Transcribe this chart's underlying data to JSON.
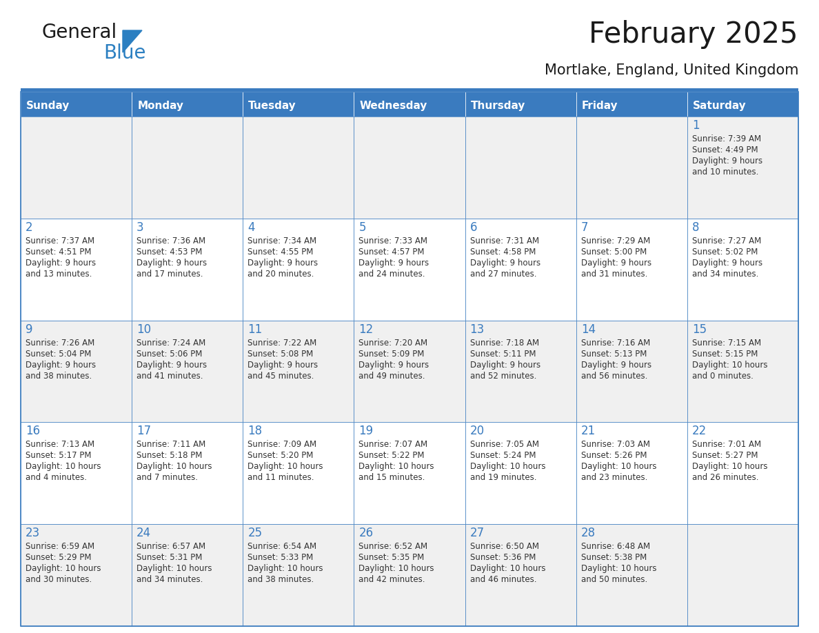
{
  "title": "February 2025",
  "subtitle": "Mortlake, England, United Kingdom",
  "days_of_week": [
    "Sunday",
    "Monday",
    "Tuesday",
    "Wednesday",
    "Thursday",
    "Friday",
    "Saturday"
  ],
  "header_bg": "#3a7bbf",
  "header_text": "#ffffff",
  "cell_bg_odd": "#f0f0f0",
  "cell_bg_even": "#ffffff",
  "day_num_color": "#3a7bbf",
  "text_color": "#333333",
  "border_color": "#3a7bbf",
  "calendar_data": [
    [
      null,
      null,
      null,
      null,
      null,
      null,
      {
        "day": 1,
        "sunrise": "7:39 AM",
        "sunset": "4:49 PM",
        "daylight": "9 hours",
        "daylight2": "and 10 minutes."
      }
    ],
    [
      {
        "day": 2,
        "sunrise": "7:37 AM",
        "sunset": "4:51 PM",
        "daylight": "9 hours",
        "daylight2": "and 13 minutes."
      },
      {
        "day": 3,
        "sunrise": "7:36 AM",
        "sunset": "4:53 PM",
        "daylight": "9 hours",
        "daylight2": "and 17 minutes."
      },
      {
        "day": 4,
        "sunrise": "7:34 AM",
        "sunset": "4:55 PM",
        "daylight": "9 hours",
        "daylight2": "and 20 minutes."
      },
      {
        "day": 5,
        "sunrise": "7:33 AM",
        "sunset": "4:57 PM",
        "daylight": "9 hours",
        "daylight2": "and 24 minutes."
      },
      {
        "day": 6,
        "sunrise": "7:31 AM",
        "sunset": "4:58 PM",
        "daylight": "9 hours",
        "daylight2": "and 27 minutes."
      },
      {
        "day": 7,
        "sunrise": "7:29 AM",
        "sunset": "5:00 PM",
        "daylight": "9 hours",
        "daylight2": "and 31 minutes."
      },
      {
        "day": 8,
        "sunrise": "7:27 AM",
        "sunset": "5:02 PM",
        "daylight": "9 hours",
        "daylight2": "and 34 minutes."
      }
    ],
    [
      {
        "day": 9,
        "sunrise": "7:26 AM",
        "sunset": "5:04 PM",
        "daylight": "9 hours",
        "daylight2": "and 38 minutes."
      },
      {
        "day": 10,
        "sunrise": "7:24 AM",
        "sunset": "5:06 PM",
        "daylight": "9 hours",
        "daylight2": "and 41 minutes."
      },
      {
        "day": 11,
        "sunrise": "7:22 AM",
        "sunset": "5:08 PM",
        "daylight": "9 hours",
        "daylight2": "and 45 minutes."
      },
      {
        "day": 12,
        "sunrise": "7:20 AM",
        "sunset": "5:09 PM",
        "daylight": "9 hours",
        "daylight2": "and 49 minutes."
      },
      {
        "day": 13,
        "sunrise": "7:18 AM",
        "sunset": "5:11 PM",
        "daylight": "9 hours",
        "daylight2": "and 52 minutes."
      },
      {
        "day": 14,
        "sunrise": "7:16 AM",
        "sunset": "5:13 PM",
        "daylight": "9 hours",
        "daylight2": "and 56 minutes."
      },
      {
        "day": 15,
        "sunrise": "7:15 AM",
        "sunset": "5:15 PM",
        "daylight": "10 hours",
        "daylight2": "and 0 minutes."
      }
    ],
    [
      {
        "day": 16,
        "sunrise": "7:13 AM",
        "sunset": "5:17 PM",
        "daylight": "10 hours",
        "daylight2": "and 4 minutes."
      },
      {
        "day": 17,
        "sunrise": "7:11 AM",
        "sunset": "5:18 PM",
        "daylight": "10 hours",
        "daylight2": "and 7 minutes."
      },
      {
        "day": 18,
        "sunrise": "7:09 AM",
        "sunset": "5:20 PM",
        "daylight": "10 hours",
        "daylight2": "and 11 minutes."
      },
      {
        "day": 19,
        "sunrise": "7:07 AM",
        "sunset": "5:22 PM",
        "daylight": "10 hours",
        "daylight2": "and 15 minutes."
      },
      {
        "day": 20,
        "sunrise": "7:05 AM",
        "sunset": "5:24 PM",
        "daylight": "10 hours",
        "daylight2": "and 19 minutes."
      },
      {
        "day": 21,
        "sunrise": "7:03 AM",
        "sunset": "5:26 PM",
        "daylight": "10 hours",
        "daylight2": "and 23 minutes."
      },
      {
        "day": 22,
        "sunrise": "7:01 AM",
        "sunset": "5:27 PM",
        "daylight": "10 hours",
        "daylight2": "and 26 minutes."
      }
    ],
    [
      {
        "day": 23,
        "sunrise": "6:59 AM",
        "sunset": "5:29 PM",
        "daylight": "10 hours",
        "daylight2": "and 30 minutes."
      },
      {
        "day": 24,
        "sunrise": "6:57 AM",
        "sunset": "5:31 PM",
        "daylight": "10 hours",
        "daylight2": "and 34 minutes."
      },
      {
        "day": 25,
        "sunrise": "6:54 AM",
        "sunset": "5:33 PM",
        "daylight": "10 hours",
        "daylight2": "and 38 minutes."
      },
      {
        "day": 26,
        "sunrise": "6:52 AM",
        "sunset": "5:35 PM",
        "daylight": "10 hours",
        "daylight2": "and 42 minutes."
      },
      {
        "day": 27,
        "sunrise": "6:50 AM",
        "sunset": "5:36 PM",
        "daylight": "10 hours",
        "daylight2": "and 46 minutes."
      },
      {
        "day": 28,
        "sunrise": "6:48 AM",
        "sunset": "5:38 PM",
        "daylight": "10 hours",
        "daylight2": "and 50 minutes."
      },
      null
    ]
  ],
  "logo_text1": "General",
  "logo_text2": "Blue",
  "logo_color1": "#1a1a1a",
  "logo_color2": "#2b7fc1",
  "logo_triangle_color": "#2b7fc1",
  "fig_width": 11.88,
  "fig_height": 9.18,
  "dpi": 100
}
